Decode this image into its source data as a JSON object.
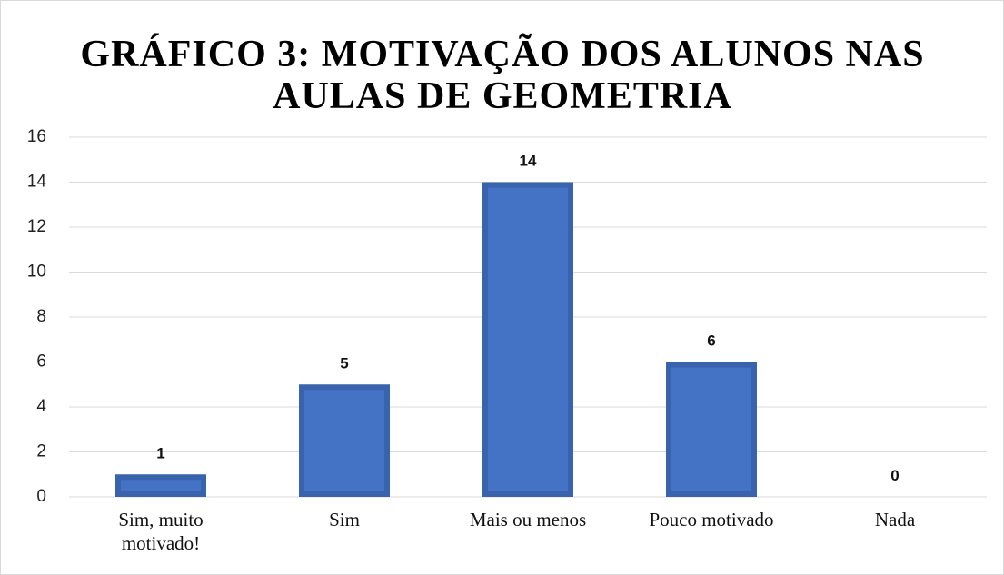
{
  "chart_data": {
    "type": "bar",
    "title": [
      "GRÁFICO 3: MOTIVAÇÃO DOS ALUNOS NAS",
      "AULAS DE GEOMETRIA"
    ],
    "categories": [
      "Sim, muito motivado!",
      "Sim",
      "Mais ou menos",
      "Pouco motivado",
      "Nada"
    ],
    "values": [
      1,
      5,
      14,
      6,
      0
    ],
    "color": "#4472c4",
    "ylim": [
      0,
      16
    ],
    "yticks": [
      0,
      2,
      4,
      6,
      8,
      10,
      12,
      14,
      16
    ],
    "grid": true
  }
}
